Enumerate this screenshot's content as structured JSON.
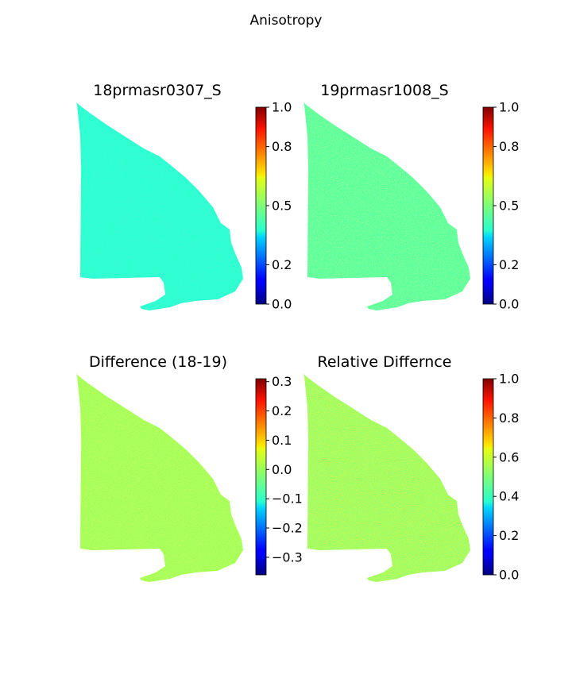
{
  "figure": {
    "title": "Anisotropy"
  },
  "chart_data": [
    {
      "type": "heatmap",
      "title": "18prmasr0307_S",
      "colormap": "jet",
      "value_range": [
        0.0,
        1.0
      ],
      "dominant_value": 0.42,
      "colorbar_ticks": [
        {
          "value": 0.0,
          "label": "0.0"
        },
        {
          "value": 0.2,
          "label": "0.2"
        },
        {
          "value": 0.5,
          "label": "0.5"
        },
        {
          "value": 0.8,
          "label": "0.8"
        },
        {
          "value": 1.0,
          "label": "1.0"
        }
      ]
    },
    {
      "type": "heatmap",
      "title": "19prmasr1008_S",
      "colormap": "jet",
      "value_range": [
        0.0,
        1.0
      ],
      "dominant_value": 0.47,
      "colorbar_ticks": [
        {
          "value": 0.0,
          "label": "0.0"
        },
        {
          "value": 0.2,
          "label": "0.2"
        },
        {
          "value": 0.5,
          "label": "0.5"
        },
        {
          "value": 0.8,
          "label": "0.8"
        },
        {
          "value": 1.0,
          "label": "1.0"
        }
      ]
    },
    {
      "type": "heatmap",
      "title": "Difference (18-19)",
      "colormap": "jet",
      "value_range": [
        -0.36,
        0.31
      ],
      "dominant_value": 0.0,
      "colorbar_ticks": [
        {
          "value": -0.3,
          "label": "−0.3"
        },
        {
          "value": -0.2,
          "label": "−0.2"
        },
        {
          "value": -0.1,
          "label": "−0.1"
        },
        {
          "value": 0.0,
          "label": "0.0"
        },
        {
          "value": 0.1,
          "label": "0.1"
        },
        {
          "value": 0.2,
          "label": "0.2"
        },
        {
          "value": 0.3,
          "label": "0.3"
        }
      ]
    },
    {
      "type": "heatmap",
      "title": "Relative Differnce",
      "colormap": "jet",
      "value_range": [
        0.0,
        1.0
      ],
      "dominant_value": 0.52,
      "colorbar_ticks": [
        {
          "value": 0.0,
          "label": "0.0"
        },
        {
          "value": 0.2,
          "label": "0.2"
        },
        {
          "value": 0.4,
          "label": "0.4"
        },
        {
          "value": 0.6,
          "label": "0.6"
        },
        {
          "value": 0.8,
          "label": "0.8"
        },
        {
          "value": 1.0,
          "label": "1.0"
        }
      ]
    }
  ]
}
